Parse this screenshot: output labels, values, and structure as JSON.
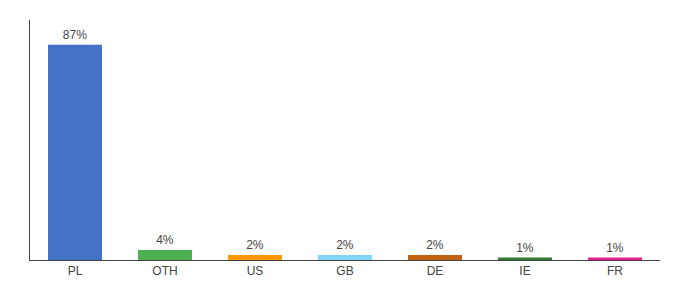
{
  "chart_data": {
    "type": "bar",
    "categories": [
      "PL",
      "OTH",
      "US",
      "GB",
      "DE",
      "IE",
      "FR"
    ],
    "values": [
      87,
      4,
      2,
      2,
      2,
      1,
      1
    ],
    "value_labels": [
      "87%",
      "4%",
      "2%",
      "2%",
      "2%",
      "1%",
      "1%"
    ],
    "colors": [
      "#4472C4",
      "#4CAF50",
      "#FF9800",
      "#81D4FA",
      "#C06010",
      "#2E7D32",
      "#E91E8C"
    ],
    "ylim": [
      0,
      97
    ],
    "grid": false,
    "data_labels": true,
    "tick_labels": "x"
  }
}
